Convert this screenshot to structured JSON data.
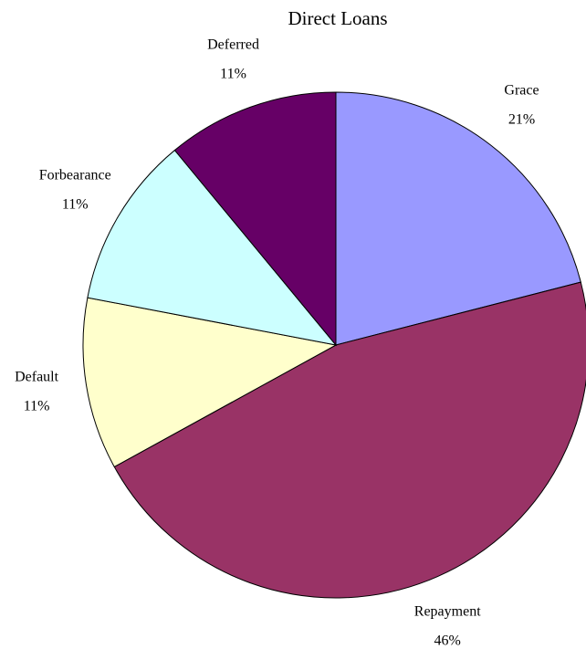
{
  "chart_data": {
    "type": "pie",
    "title": "Direct Loans",
    "categories": [
      "Grace",
      "Repayment",
      "Default",
      "Forbearance",
      "Deferred"
    ],
    "values": [
      21,
      46,
      11,
      11,
      11
    ],
    "value_labels": [
      "21%",
      "46%",
      "11%",
      "11%",
      "11%"
    ],
    "colors": [
      "#9999ff",
      "#993366",
      "#ffffcc",
      "#ccffff",
      "#660066"
    ]
  }
}
